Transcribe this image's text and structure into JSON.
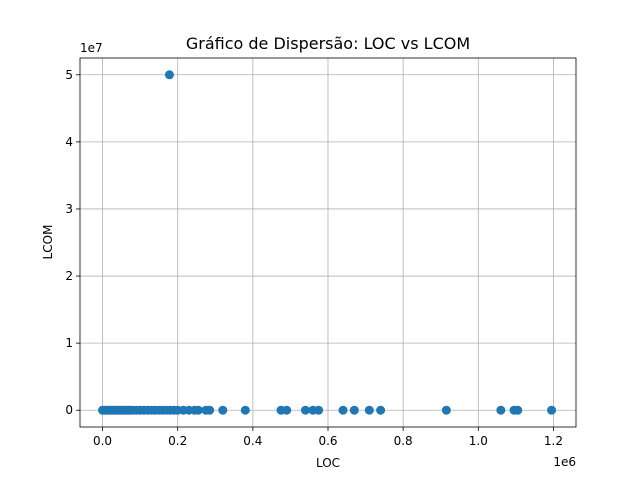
{
  "chart_data": {
    "type": "scatter",
    "title": "Gráfico de Dispersão: LOC vs LCOM",
    "xlabel": "LOC",
    "ylabel": "LCOM",
    "x_offset_label": "1e6",
    "y_offset_label": "1e7",
    "xlim": [
      -60000,
      1260000
    ],
    "ylim": [
      -2500000,
      52500000
    ],
    "x_ticks": [
      0,
      200000,
      400000,
      600000,
      800000,
      1000000,
      1200000
    ],
    "x_tick_labels": [
      "0.0",
      "0.2",
      "0.4",
      "0.6",
      "0.8",
      "1.0",
      "1.2"
    ],
    "y_ticks": [
      0,
      10000000,
      20000000,
      30000000,
      40000000,
      50000000
    ],
    "y_tick_labels": [
      "0",
      "1",
      "2",
      "3",
      "4",
      "5"
    ],
    "grid": true,
    "marker_color": "#1f77b4",
    "x": [
      0,
      5000,
      10000,
      15000,
      20000,
      25000,
      30000,
      35000,
      40000,
      45000,
      50000,
      55000,
      60000,
      65000,
      70000,
      75000,
      80000,
      90000,
      100000,
      110000,
      120000,
      130000,
      140000,
      150000,
      160000,
      170000,
      180000,
      190000,
      200000,
      215000,
      230000,
      245000,
      255000,
      275000,
      285000,
      320000,
      380000,
      475000,
      490000,
      540000,
      560000,
      575000,
      640000,
      670000,
      710000,
      740000,
      915000,
      1060000,
      1095000,
      1105000,
      1195000,
      178000
    ],
    "y": [
      0,
      0,
      0,
      0,
      0,
      0,
      0,
      0,
      0,
      0,
      0,
      0,
      0,
      0,
      0,
      0,
      0,
      0,
      0,
      0,
      0,
      0,
      0,
      0,
      0,
      0,
      0,
      0,
      0,
      0,
      0,
      0,
      0,
      0,
      0,
      0,
      0,
      0,
      0,
      0,
      0,
      0,
      0,
      0,
      0,
      0,
      0,
      0,
      0,
      0,
      0,
      50000000
    ]
  }
}
